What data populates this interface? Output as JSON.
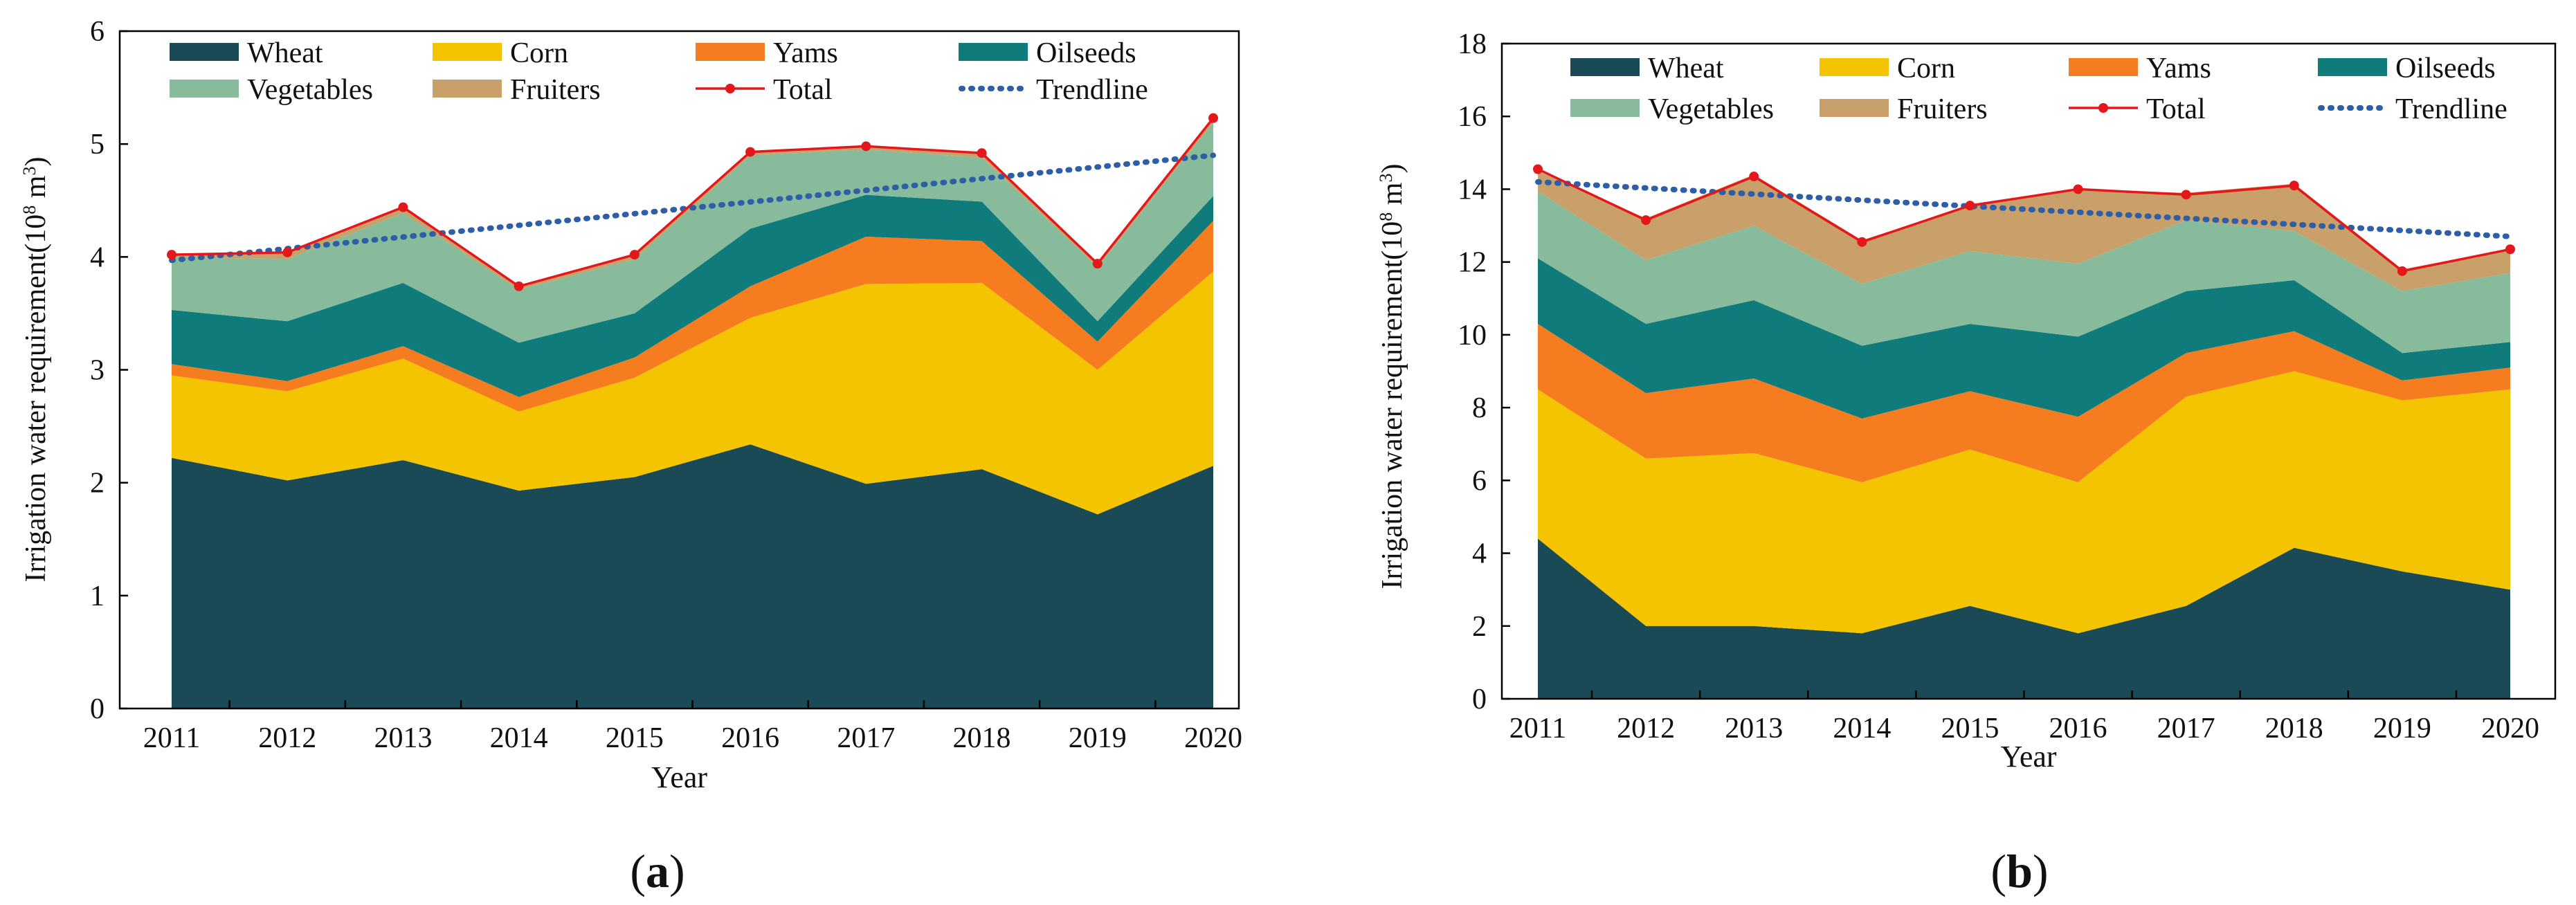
{
  "chart_data": [
    {
      "type": "area",
      "subtype": "stacked",
      "panel_label": "a",
      "title": "",
      "xlabel": "Year",
      "ylabel": "Irrigation water requirement(10⁸ m³)",
      "ylabel_parts": {
        "pre": "Irrigation water requirement(10",
        "sup1": "8",
        "mid": " m",
        "sup2": "3",
        "post": ")"
      },
      "ylim": [
        0,
        6
      ],
      "yticks": [
        0,
        1,
        2,
        3,
        4,
        5,
        6
      ],
      "grid": false,
      "legend_position": "top",
      "x": [
        "2011",
        "2012",
        "2013",
        "2014",
        "2015",
        "2016",
        "2017",
        "2018",
        "2019",
        "2020"
      ],
      "series": [
        {
          "name": "Wheat",
          "color": "#1b4a57",
          "values": [
            2.22,
            2.02,
            2.2,
            1.93,
            2.05,
            2.34,
            1.99,
            2.12,
            1.72,
            2.15
          ]
        },
        {
          "name": "Corn",
          "color": "#f5c400",
          "values": [
            0.73,
            0.79,
            0.9,
            0.7,
            0.88,
            1.12,
            1.77,
            1.65,
            1.28,
            1.72
          ]
        },
        {
          "name": "Yams",
          "color": "#f57c1f",
          "values": [
            0.1,
            0.09,
            0.11,
            0.13,
            0.18,
            0.28,
            0.42,
            0.37,
            0.25,
            0.45
          ]
        },
        {
          "name": "Oilseeds",
          "color": "#0f7b7b",
          "values": [
            0.48,
            0.53,
            0.56,
            0.48,
            0.39,
            0.51,
            0.37,
            0.35,
            0.18,
            0.22
          ]
        },
        {
          "name": "Vegetables",
          "color": "#88bb9c",
          "values": [
            0.47,
            0.55,
            0.62,
            0.47,
            0.48,
            0.65,
            0.4,
            0.39,
            0.48,
            0.65
          ]
        },
        {
          "name": "Fruiters",
          "color": "#c9a06a",
          "values": [
            0.02,
            0.06,
            0.05,
            0.03,
            0.04,
            0.03,
            0.03,
            0.04,
            0.03,
            0.04
          ]
        }
      ],
      "total": {
        "name": "Total",
        "color": "#e4171b",
        "values": [
          4.02,
          4.04,
          4.44,
          3.74,
          4.02,
          4.93,
          4.98,
          4.92,
          3.94,
          5.23
        ]
      },
      "trendline": {
        "name": "Trendline",
        "color": "#2e5ea6",
        "start": 3.97,
        "end": 4.9
      }
    },
    {
      "type": "area",
      "subtype": "stacked",
      "panel_label": "b",
      "title": "",
      "xlabel": "Year",
      "ylabel": "Irrigation water requirement(10⁸ m³)",
      "ylabel_parts": {
        "pre": "Irrigation water requirement(10",
        "sup1": "8",
        "mid": " m",
        "sup2": "3",
        "post": ")"
      },
      "ylim": [
        0,
        18
      ],
      "yticks": [
        0,
        2,
        4,
        6,
        8,
        10,
        12,
        14,
        16,
        18
      ],
      "grid": false,
      "legend_position": "top",
      "x": [
        "2011",
        "2012",
        "2013",
        "2014",
        "2015",
        "2016",
        "2017",
        "2018",
        "2019",
        "2020"
      ],
      "series": [
        {
          "name": "Wheat",
          "color": "#1b4a57",
          "values": [
            4.4,
            2.0,
            2.0,
            1.8,
            2.55,
            1.8,
            2.55,
            4.15,
            3.5,
            3.0
          ]
        },
        {
          "name": "Corn",
          "color": "#f5c400",
          "values": [
            4.1,
            4.6,
            4.75,
            4.15,
            4.3,
            4.15,
            5.75,
            4.85,
            4.7,
            5.5
          ]
        },
        {
          "name": "Yams",
          "color": "#f57c1f",
          "values": [
            1.8,
            1.8,
            2.05,
            1.75,
            1.6,
            1.8,
            1.2,
            1.1,
            0.55,
            0.6
          ]
        },
        {
          "name": "Oilseeds",
          "color": "#0f7b7b",
          "values": [
            1.8,
            1.9,
            2.15,
            2.0,
            1.85,
            2.2,
            1.7,
            1.4,
            0.75,
            0.7
          ]
        },
        {
          "name": "Vegetables",
          "color": "#88bb9c",
          "values": [
            1.85,
            1.75,
            2.05,
            1.7,
            2.0,
            2.0,
            1.95,
            1.35,
            1.7,
            1.9
          ]
        },
        {
          "name": "Fruiters",
          "color": "#c9a06a",
          "values": [
            0.55,
            1.15,
            1.4,
            1.2,
            1.25,
            2.05,
            0.75,
            1.3,
            0.6,
            0.65
          ]
        }
      ],
      "total": {
        "name": "Total",
        "color": "#e4171b",
        "values": [
          14.55,
          13.15,
          14.35,
          12.55,
          13.55,
          14.0,
          13.85,
          14.1,
          11.75,
          12.35
        ]
      },
      "trendline": {
        "name": "Trendline",
        "color": "#2e5ea6",
        "start": 14.2,
        "end": 12.7
      }
    }
  ]
}
